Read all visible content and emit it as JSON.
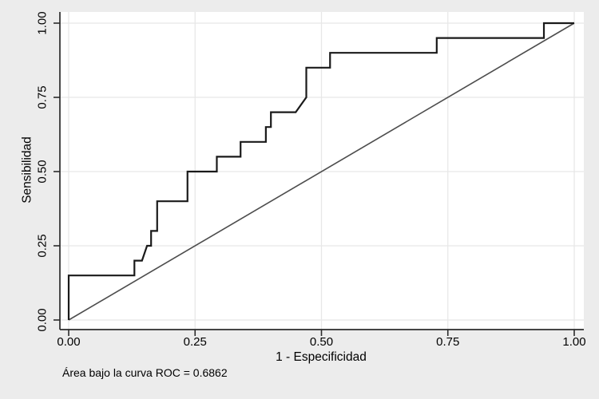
{
  "chart_data": {
    "type": "line",
    "description": "ROC curve (empirical step curve) with 45-degree reference diagonal",
    "xlabel": "1 - Especificidad",
    "ylabel": "Sensibilidad",
    "caption": "Área bajo la curva ROC = 0.6862",
    "auc": "0.6862",
    "xlim": [
      0,
      1
    ],
    "ylim": [
      0,
      1
    ],
    "grid": true,
    "x_ticks": [
      0,
      0.25,
      0.5,
      0.75,
      1.0
    ],
    "x_tick_labels": [
      "0.00",
      "0.25",
      "0.50",
      "0.75",
      "1.00"
    ],
    "y_ticks": [
      0,
      0.25,
      0.5,
      0.75,
      1.0
    ],
    "y_tick_labels": [
      "0.00",
      "0.25",
      "0.50",
      "0.75",
      "1.00"
    ],
    "legend_position": "none",
    "series": [
      {
        "name": "roc-curve",
        "color": "#1a1a1a",
        "width": 2.2,
        "points": [
          [
            0.0,
            0.0
          ],
          [
            0.0,
            0.15
          ],
          [
            0.13,
            0.15
          ],
          [
            0.13,
            0.2
          ],
          [
            0.145,
            0.2
          ],
          [
            0.155,
            0.25
          ],
          [
            0.163,
            0.25
          ],
          [
            0.163,
            0.3
          ],
          [
            0.175,
            0.3
          ],
          [
            0.175,
            0.4
          ],
          [
            0.235,
            0.4
          ],
          [
            0.235,
            0.5
          ],
          [
            0.293,
            0.5
          ],
          [
            0.293,
            0.55
          ],
          [
            0.34,
            0.55
          ],
          [
            0.34,
            0.6
          ],
          [
            0.39,
            0.6
          ],
          [
            0.39,
            0.65
          ],
          [
            0.4,
            0.65
          ],
          [
            0.4,
            0.7
          ],
          [
            0.449,
            0.7
          ],
          [
            0.47,
            0.75
          ],
          [
            0.47,
            0.85
          ],
          [
            0.517,
            0.85
          ],
          [
            0.517,
            0.9
          ],
          [
            0.728,
            0.9
          ],
          [
            0.728,
            0.95
          ],
          [
            0.94,
            0.95
          ],
          [
            0.94,
            1.0
          ],
          [
            1.0,
            1.0
          ]
        ]
      },
      {
        "name": "reference-diagonal",
        "color": "#4d4d4d",
        "width": 1.6,
        "points": [
          [
            0,
            0
          ],
          [
            1,
            1
          ]
        ]
      }
    ]
  },
  "colors": {
    "page_background": "#ececec",
    "plot_background": "#ffffff",
    "grid": "#e7e7e7",
    "axis": "#2b2b2b",
    "text": "#000000"
  }
}
